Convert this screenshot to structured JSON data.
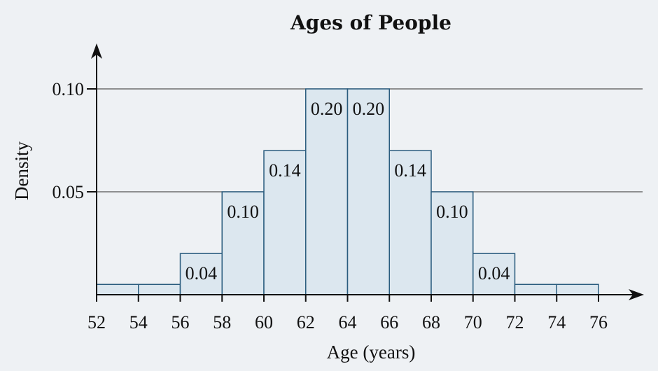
{
  "chart_data": {
    "type": "bar",
    "title": "Ages of People",
    "xlabel": "Age (years)",
    "ylabel": "Density",
    "bins": [
      {
        "start": 52,
        "end": 54,
        "density": 0.005,
        "label": ""
      },
      {
        "start": 54,
        "end": 56,
        "density": 0.005,
        "label": ""
      },
      {
        "start": 56,
        "end": 58,
        "density": 0.02,
        "label": "0.04"
      },
      {
        "start": 58,
        "end": 60,
        "density": 0.05,
        "label": "0.10"
      },
      {
        "start": 60,
        "end": 62,
        "density": 0.07,
        "label": "0.14"
      },
      {
        "start": 62,
        "end": 64,
        "density": 0.1,
        "label": "0.20"
      },
      {
        "start": 64,
        "end": 66,
        "density": 0.1,
        "label": "0.20"
      },
      {
        "start": 66,
        "end": 68,
        "density": 0.07,
        "label": "0.14"
      },
      {
        "start": 68,
        "end": 70,
        "density": 0.05,
        "label": "0.10"
      },
      {
        "start": 70,
        "end": 72,
        "density": 0.02,
        "label": "0.04"
      },
      {
        "start": 72,
        "end": 74,
        "density": 0.005,
        "label": ""
      },
      {
        "start": 74,
        "end": 76,
        "density": 0.005,
        "label": ""
      }
    ],
    "x_ticks": [
      "52",
      "54",
      "56",
      "58",
      "60",
      "62",
      "64",
      "66",
      "68",
      "70",
      "72",
      "74",
      "76"
    ],
    "y_ticks": [
      {
        "value": 0.05,
        "label": "0.05"
      },
      {
        "value": 0.1,
        "label": "0.10"
      }
    ],
    "xlim": [
      52,
      76
    ],
    "ylim": [
      0,
      0.1
    ],
    "grid": true
  },
  "colors": {
    "background": "#eef1f4",
    "bar_fill": "#dce7ef",
    "bar_stroke": "#2a5c7e"
  }
}
